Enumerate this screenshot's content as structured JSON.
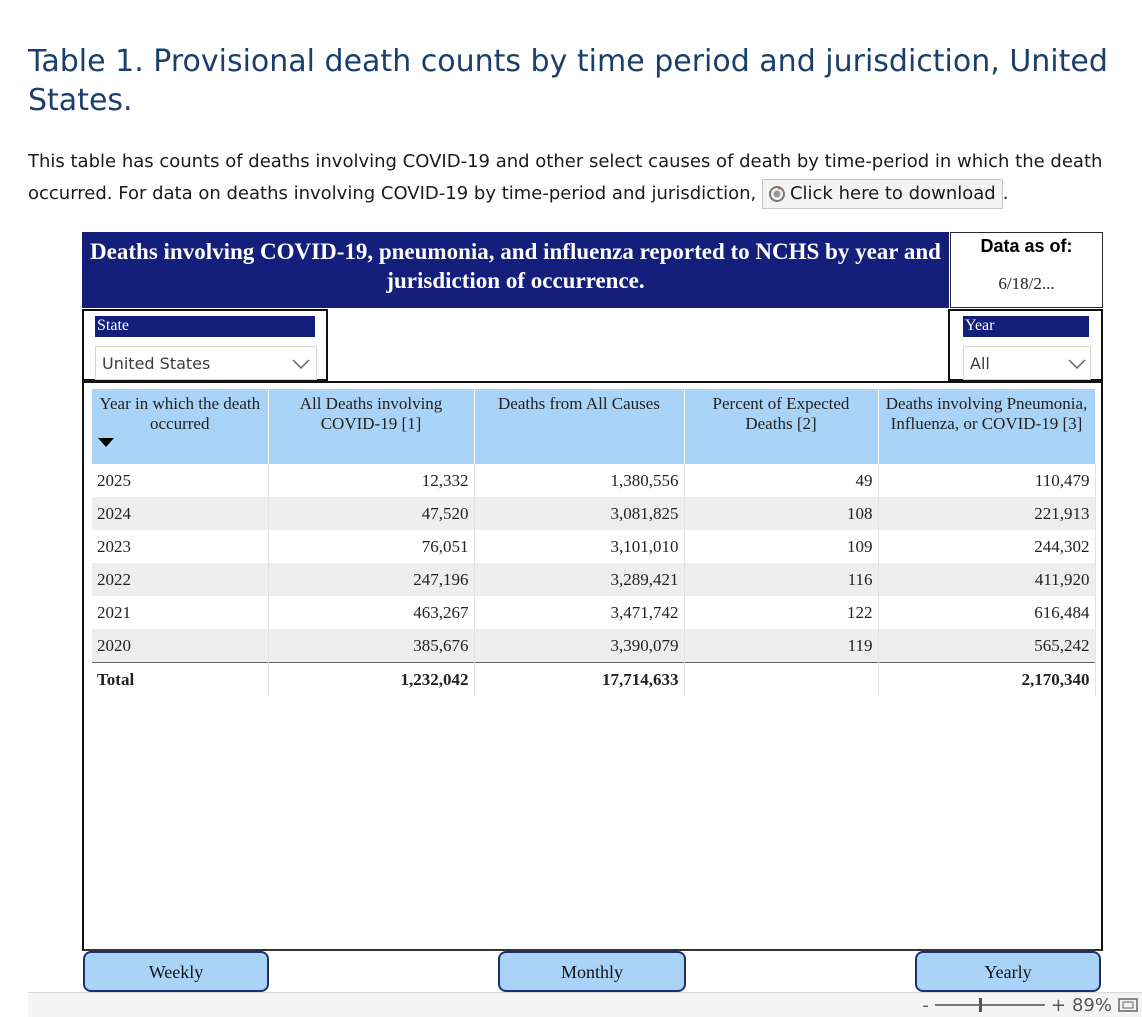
{
  "page": {
    "title": "Table 1. Provisional death counts by time period and jurisdiction, United States.",
    "intro_text": "This table has counts of deaths involving COVID-19 and other select causes of death by time-period in which the death occurred. For data on deaths involving COVID-19 by time-period and jurisdiction,",
    "download_label": "Click here to download",
    "trailing_period": "."
  },
  "report": {
    "banner_title": "Deaths involving COVID-19, pneumonia, and influenza reported to NCHS by year and jurisdiction of occurrence.",
    "as_of_label": "Data as of:",
    "as_of_value": "6/18/2...",
    "state_slicer": {
      "title": "State",
      "value": "United States"
    },
    "year_slicer": {
      "title": "Year",
      "value": "All"
    },
    "table": {
      "columns": [
        "Year in which the death occurred",
        "All Deaths involving COVID-19 [1]",
        "Deaths from All Causes",
        "Percent of Expected Deaths [2]",
        "Deaths involving Pneumonia, Influenza, or COVID-19 [3]"
      ],
      "rows": [
        [
          "2025",
          "12,332",
          "1,380,556",
          "49",
          "110,479"
        ],
        [
          "2024",
          "47,520",
          "3,081,825",
          "108",
          "221,913"
        ],
        [
          "2023",
          "76,051",
          "3,101,010",
          "109",
          "244,302"
        ],
        [
          "2022",
          "247,196",
          "3,289,421",
          "116",
          "411,920"
        ],
        [
          "2021",
          "463,267",
          "3,471,742",
          "122",
          "616,484"
        ],
        [
          "2020",
          "385,676",
          "3,390,079",
          "119",
          "565,242"
        ]
      ],
      "total": [
        "Total",
        "1,232,042",
        "17,714,633",
        "",
        "2,170,340"
      ]
    },
    "nav_buttons": {
      "weekly": "Weekly",
      "monthly": "Monthly",
      "yearly": "Yearly"
    }
  },
  "statusbar": {
    "zoom_minus": "-",
    "zoom_plus": "+",
    "zoom_level": "89%",
    "zoom_fraction": 0.4
  },
  "colors": {
    "title": "#1b3f6c",
    "banner": "#131f7a",
    "header": "#a9d4f8",
    "row_alt": "#eeeeee"
  },
  "icons": {
    "download": "refresh-circle-icon",
    "sort": "sort-desc-icon",
    "dropdown": "chevron-down-icon",
    "fit": "fit-to-page-icon"
  }
}
